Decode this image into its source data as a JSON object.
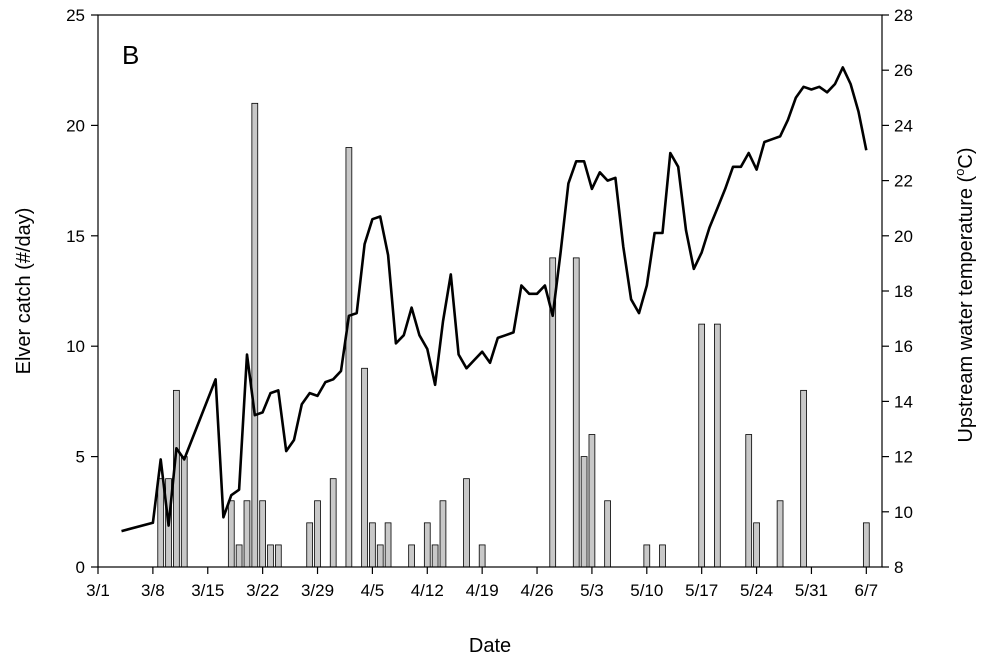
{
  "chart_data": {
    "type": "bar",
    "panel_label": "B",
    "xlabel": "Date",
    "x_tick_labels": [
      "3/1",
      "3/8",
      "3/15",
      "3/22",
      "3/29",
      "4/5",
      "4/12",
      "4/19",
      "4/26",
      "5/3",
      "5/10",
      "5/17",
      "5/24",
      "5/31",
      "6/7"
    ],
    "x_tick_dates": [
      "2011-03-01",
      "2011-03-08",
      "2011-03-15",
      "2011-03-22",
      "2011-03-29",
      "2011-04-05",
      "2011-04-12",
      "2011-04-19",
      "2011-04-26",
      "2011-05-03",
      "2011-05-10",
      "2011-05-17",
      "2011-05-24",
      "2011-05-31",
      "2011-06-07"
    ],
    "xlim": [
      "2011-03-01",
      "2011-06-09"
    ],
    "y_left": {
      "label": "Elver catch (#/day)",
      "ylim": [
        0,
        25
      ],
      "ticks": [
        "0",
        "5",
        "10",
        "15",
        "20",
        "25"
      ]
    },
    "y_right": {
      "label_main": "Upstream water temperature (",
      "label_sup": "o",
      "label_tail": "C)",
      "ylim": [
        8,
        28
      ],
      "ticks": [
        "8",
        "10",
        "12",
        "14",
        "16",
        "18",
        "20",
        "22",
        "24",
        "26",
        "28"
      ]
    },
    "grid": false,
    "series": [
      {
        "type": "bar",
        "axis": "left",
        "x": [
          "2011-03-09",
          "2011-03-10",
          "2011-03-11",
          "2011-03-12",
          "2011-03-18",
          "2011-03-19",
          "2011-03-20",
          "2011-03-21",
          "2011-03-22",
          "2011-03-23",
          "2011-03-24",
          "2011-03-28",
          "2011-03-29",
          "2011-03-31",
          "2011-04-02",
          "2011-04-04",
          "2011-04-05",
          "2011-04-06",
          "2011-04-07",
          "2011-04-10",
          "2011-04-12",
          "2011-04-13",
          "2011-04-14",
          "2011-04-17",
          "2011-04-19",
          "2011-04-28",
          "2011-05-01",
          "2011-05-02",
          "2011-05-03",
          "2011-05-05",
          "2011-05-10",
          "2011-05-12",
          "2011-05-17",
          "2011-05-19",
          "2011-05-23",
          "2011-05-24",
          "2011-05-27",
          "2011-05-30",
          "2011-06-07"
        ],
        "values": [
          4,
          4,
          8,
          5,
          3,
          1,
          3,
          21,
          3,
          1,
          1,
          2,
          3,
          4,
          19,
          9,
          2,
          1,
          2,
          1,
          2,
          1,
          3,
          4,
          1,
          14,
          14,
          5,
          6,
          3,
          1,
          1,
          11,
          11,
          6,
          2,
          3,
          8,
          2
        ]
      },
      {
        "type": "line",
        "axis": "right",
        "x": [
          "2011-03-04",
          "2011-03-08",
          "2011-03-09",
          "2011-03-10",
          "2011-03-11",
          "2011-03-12",
          "2011-03-16",
          "2011-03-17",
          "2011-03-18",
          "2011-03-19",
          "2011-03-20",
          "2011-03-21",
          "2011-03-22",
          "2011-03-23",
          "2011-03-24",
          "2011-03-25",
          "2011-03-26",
          "2011-03-27",
          "2011-03-28",
          "2011-03-29",
          "2011-03-30",
          "2011-03-31",
          "2011-04-01",
          "2011-04-02",
          "2011-04-03",
          "2011-04-04",
          "2011-04-05",
          "2011-04-06",
          "2011-04-07",
          "2011-04-08",
          "2011-04-09",
          "2011-04-10",
          "2011-04-11",
          "2011-04-12",
          "2011-04-13",
          "2011-04-14",
          "2011-04-15",
          "2011-04-16",
          "2011-04-17",
          "2011-04-18",
          "2011-04-19",
          "2011-04-20",
          "2011-04-21",
          "2011-04-22",
          "2011-04-23",
          "2011-04-24",
          "2011-04-25",
          "2011-04-26",
          "2011-04-27",
          "2011-04-28",
          "2011-04-29",
          "2011-04-30",
          "2011-05-01",
          "2011-05-02",
          "2011-05-03",
          "2011-05-04",
          "2011-05-05",
          "2011-05-06",
          "2011-05-07",
          "2011-05-08",
          "2011-05-09",
          "2011-05-10",
          "2011-05-11",
          "2011-05-12",
          "2011-05-13",
          "2011-05-14",
          "2011-05-15",
          "2011-05-16",
          "2011-05-17",
          "2011-05-18",
          "2011-05-19",
          "2011-05-20",
          "2011-05-21",
          "2011-05-22",
          "2011-05-23",
          "2011-05-24",
          "2011-05-25",
          "2011-05-26",
          "2011-05-27",
          "2011-05-28",
          "2011-05-29",
          "2011-05-30",
          "2011-05-31",
          "2011-06-01",
          "2011-06-02",
          "2011-06-03",
          "2011-06-04",
          "2011-06-05",
          "2011-06-06",
          "2011-06-07"
        ],
        "values": [
          9.3,
          9.6,
          11.9,
          9.5,
          12.3,
          11.9,
          14.8,
          9.8,
          10.6,
          10.8,
          15.7,
          13.5,
          13.6,
          14.3,
          14.4,
          12.2,
          12.6,
          13.9,
          14.3,
          14.2,
          14.7,
          14.8,
          15.1,
          17.1,
          17.2,
          19.7,
          20.6,
          20.7,
          19.3,
          16.1,
          16.4,
          17.4,
          16.4,
          15.9,
          14.6,
          16.9,
          18.6,
          15.7,
          15.2,
          15.5,
          15.8,
          15.4,
          16.3,
          16.4,
          16.5,
          18.2,
          17.9,
          17.9,
          18.2,
          17.1,
          19.4,
          21.9,
          22.7,
          22.7,
          21.7,
          22.3,
          22.0,
          22.1,
          19.6,
          17.7,
          17.2,
          18.2,
          20.1,
          20.1,
          23.0,
          22.5,
          20.2,
          18.8,
          19.4,
          20.3,
          21.0,
          21.7,
          22.5,
          22.5,
          23.0,
          22.4,
          23.4,
          23.5,
          23.6,
          24.2,
          25.0,
          25.4,
          25.3,
          25.4,
          25.2,
          25.5,
          26.1,
          25.5,
          24.5,
          23.1
        ]
      }
    ]
  }
}
